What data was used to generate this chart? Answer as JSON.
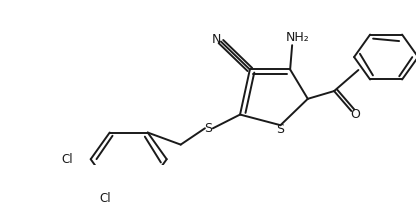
{
  "bg_color": "#ffffff",
  "line_color": "#1a1a1a",
  "line_width": 1.4,
  "figsize": [
    4.16,
    2.04
  ],
  "dpi": 100,
  "xlim": [
    0,
    416
  ],
  "ylim": [
    0,
    204
  ]
}
